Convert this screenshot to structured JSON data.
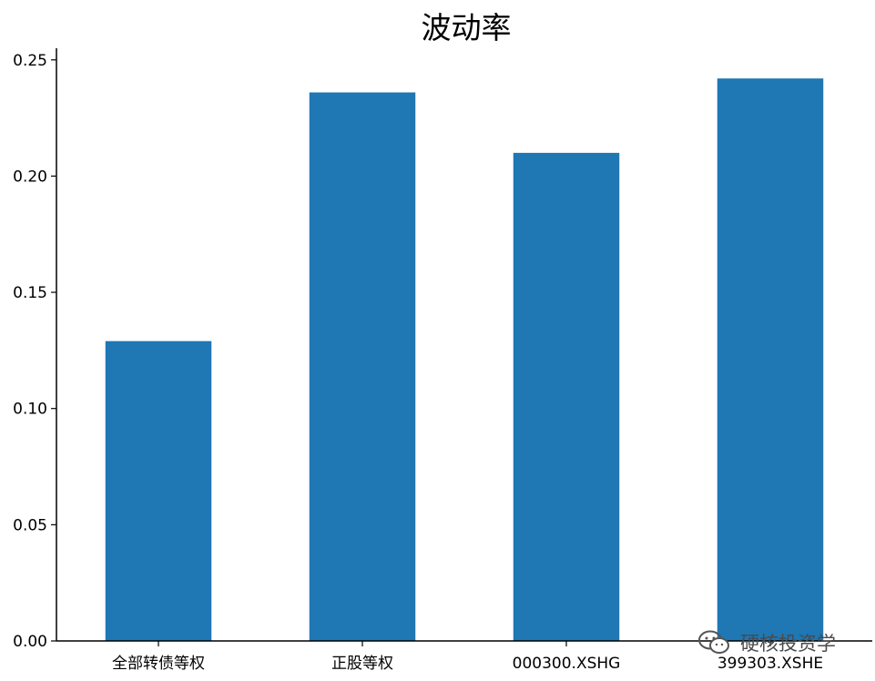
{
  "chart_data": {
    "type": "bar",
    "title": "波动率",
    "categories": [
      "全部转债等权",
      "正股等权",
      "000300.XSHG",
      "399303.XSHE"
    ],
    "values": [
      0.129,
      0.236,
      0.21,
      0.242
    ],
    "ylim": [
      0,
      0.255
    ],
    "yticks": [
      "0.00",
      "0.05",
      "0.10",
      "0.15",
      "0.20",
      "0.25"
    ],
    "xlabel": "",
    "ylabel": "",
    "grid": false,
    "bar_color": "#1f77b4",
    "axis_color": "#000000"
  },
  "watermark": {
    "icon": "wechat-icon",
    "text": "硬核投资学"
  }
}
